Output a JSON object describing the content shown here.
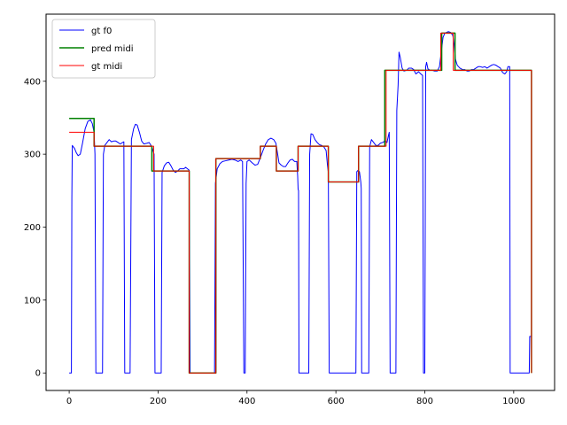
{
  "chart_data": {
    "type": "line",
    "xlim": [
      -52,
      1092
    ],
    "ylim": [
      -24,
      492
    ],
    "x_ticks": [
      0,
      200,
      400,
      600,
      800,
      1000
    ],
    "y_ticks": [
      0,
      100,
      200,
      300,
      400
    ],
    "grid": false,
    "legend_position": "top-left",
    "series": [
      {
        "name": "gt f0",
        "color": "#0000ff",
        "points": [
          [
            0,
            0
          ],
          [
            5,
            0
          ],
          [
            6,
            240
          ],
          [
            7,
            312
          ],
          [
            12,
            308
          ],
          [
            16,
            302
          ],
          [
            20,
            298
          ],
          [
            25,
            300
          ],
          [
            30,
            315
          ],
          [
            36,
            335
          ],
          [
            42,
            345
          ],
          [
            48,
            347
          ],
          [
            52,
            342
          ],
          [
            56,
            330
          ],
          [
            58,
            300
          ],
          [
            60,
            0
          ],
          [
            75,
            0
          ],
          [
            77,
            300
          ],
          [
            80,
            312
          ],
          [
            85,
            316
          ],
          [
            90,
            320
          ],
          [
            95,
            317
          ],
          [
            100,
            318
          ],
          [
            105,
            318
          ],
          [
            110,
            316
          ],
          [
            115,
            314
          ],
          [
            120,
            316
          ],
          [
            123,
            317
          ],
          [
            125,
            0
          ],
          [
            137,
            0
          ],
          [
            140,
            320
          ],
          [
            145,
            335
          ],
          [
            149,
            341
          ],
          [
            153,
            340
          ],
          [
            158,
            330
          ],
          [
            163,
            318
          ],
          [
            168,
            314
          ],
          [
            175,
            315
          ],
          [
            180,
            316
          ],
          [
            186,
            310
          ],
          [
            191,
            300
          ],
          [
            193,
            0
          ],
          [
            207,
            0
          ],
          [
            209,
            275
          ],
          [
            214,
            284
          ],
          [
            219,
            288
          ],
          [
            224,
            289
          ],
          [
            229,
            284
          ],
          [
            234,
            278
          ],
          [
            239,
            275
          ],
          [
            244,
            277
          ],
          [
            249,
            280
          ],
          [
            254,
            280
          ],
          [
            258,
            280
          ],
          [
            262,
            282
          ],
          [
            266,
            280
          ],
          [
            270,
            278
          ],
          [
            272,
            0
          ],
          [
            327,
            0
          ],
          [
            329,
            260
          ],
          [
            333,
            280
          ],
          [
            339,
            287
          ],
          [
            345,
            290
          ],
          [
            352,
            291
          ],
          [
            359,
            292
          ],
          [
            366,
            293
          ],
          [
            373,
            292
          ],
          [
            380,
            290
          ],
          [
            386,
            292
          ],
          [
            390,
            290
          ],
          [
            393,
            0
          ],
          [
            396,
            0
          ],
          [
            398,
            260
          ],
          [
            400,
            290
          ],
          [
            405,
            292
          ],
          [
            412,
            288
          ],
          [
            418,
            285
          ],
          [
            424,
            286
          ],
          [
            430,
            295
          ],
          [
            436,
            305
          ],
          [
            442,
            314
          ],
          [
            448,
            320
          ],
          [
            454,
            322
          ],
          [
            460,
            320
          ],
          [
            465,
            315
          ],
          [
            469,
            300
          ],
          [
            472,
            288
          ],
          [
            477,
            285
          ],
          [
            482,
            283
          ],
          [
            487,
            283
          ],
          [
            492,
            288
          ],
          [
            497,
            292
          ],
          [
            502,
            293
          ],
          [
            507,
            290
          ],
          [
            512,
            290
          ],
          [
            514,
            270
          ],
          [
            515,
            252
          ],
          [
            516,
            250
          ],
          [
            517,
            0
          ],
          [
            539,
            0
          ],
          [
            541,
            300
          ],
          [
            544,
            328
          ],
          [
            548,
            327
          ],
          [
            553,
            320
          ],
          [
            558,
            316
          ],
          [
            563,
            313
          ],
          [
            568,
            312
          ],
          [
            573,
            310
          ],
          [
            578,
            305
          ],
          [
            581,
            285
          ],
          [
            583,
            275
          ],
          [
            585,
            0
          ],
          [
            645,
            0
          ],
          [
            647,
            276
          ],
          [
            650,
            278
          ],
          [
            653,
            276
          ],
          [
            656,
            262
          ],
          [
            657,
            253
          ],
          [
            658,
            0
          ],
          [
            674,
            0
          ],
          [
            676,
            310
          ],
          [
            680,
            320
          ],
          [
            685,
            316
          ],
          [
            690,
            312
          ],
          [
            695,
            312
          ],
          [
            700,
            315
          ],
          [
            705,
            316
          ],
          [
            710,
            318
          ],
          [
            715,
            316
          ],
          [
            718,
            325
          ],
          [
            720,
            330
          ],
          [
            722,
            0
          ],
          [
            735,
            0
          ],
          [
            737,
            360
          ],
          [
            740,
            395
          ],
          [
            742,
            440
          ],
          [
            745,
            432
          ],
          [
            749,
            418
          ],
          [
            753,
            414
          ],
          [
            759,
            415
          ],
          [
            764,
            418
          ],
          [
            770,
            418
          ],
          [
            775,
            416
          ],
          [
            780,
            410
          ],
          [
            786,
            413
          ],
          [
            791,
            410
          ],
          [
            795,
            408
          ],
          [
            797,
            0
          ],
          [
            800,
            0
          ],
          [
            802,
            420
          ],
          [
            804,
            426
          ],
          [
            807,
            417
          ],
          [
            812,
            415
          ],
          [
            817,
            415
          ],
          [
            822,
            414
          ],
          [
            828,
            414
          ],
          [
            833,
            420
          ],
          [
            837,
            440
          ],
          [
            841,
            460
          ],
          [
            845,
            466
          ],
          [
            849,
            467
          ],
          [
            853,
            468
          ],
          [
            858,
            467
          ],
          [
            863,
            463
          ],
          [
            866,
            450
          ],
          [
            869,
            430
          ],
          [
            873,
            422
          ],
          [
            879,
            418
          ],
          [
            885,
            416
          ],
          [
            890,
            416
          ],
          [
            895,
            414
          ],
          [
            900,
            414
          ],
          [
            905,
            416
          ],
          [
            910,
            416
          ],
          [
            915,
            418
          ],
          [
            920,
            420
          ],
          [
            925,
            420
          ],
          [
            930,
            419
          ],
          [
            935,
            420
          ],
          [
            940,
            418
          ],
          [
            945,
            420
          ],
          [
            950,
            422
          ],
          [
            955,
            423
          ],
          [
            960,
            422
          ],
          [
            965,
            420
          ],
          [
            970,
            418
          ],
          [
            975,
            412
          ],
          [
            980,
            410
          ],
          [
            984,
            413
          ],
          [
            987,
            420
          ],
          [
            991,
            420
          ],
          [
            992,
            0
          ],
          [
            1035,
            0
          ],
          [
            1036,
            50
          ],
          [
            1040,
            50
          ]
        ]
      },
      {
        "name": "pred midi",
        "color": "#008000",
        "points": [
          [
            0,
            349
          ],
          [
            56,
            349
          ],
          [
            56,
            311
          ],
          [
            186,
            311
          ],
          [
            186,
            277
          ],
          [
            270,
            277
          ],
          [
            270,
            0
          ],
          [
            330,
            0
          ],
          [
            330,
            294
          ],
          [
            430,
            294
          ],
          [
            430,
            311
          ],
          [
            466,
            311
          ],
          [
            466,
            277
          ],
          [
            515,
            277
          ],
          [
            515,
            311
          ],
          [
            583,
            311
          ],
          [
            583,
            262
          ],
          [
            651,
            262
          ],
          [
            651,
            311
          ],
          [
            710,
            311
          ],
          [
            710,
            415
          ],
          [
            838,
            415
          ],
          [
            838,
            466
          ],
          [
            868,
            466
          ],
          [
            868,
            415
          ],
          [
            1040,
            415
          ],
          [
            1040,
            0
          ]
        ]
      },
      {
        "name": "gt midi",
        "color": "#ff0000",
        "points": [
          [
            0,
            330
          ],
          [
            56,
            330
          ],
          [
            56,
            311
          ],
          [
            190,
            311
          ],
          [
            190,
            277
          ],
          [
            270,
            277
          ],
          [
            270,
            0
          ],
          [
            330,
            0
          ],
          [
            330,
            294
          ],
          [
            430,
            294
          ],
          [
            430,
            311
          ],
          [
            466,
            311
          ],
          [
            466,
            277
          ],
          [
            515,
            277
          ],
          [
            515,
            311
          ],
          [
            583,
            311
          ],
          [
            583,
            262
          ],
          [
            651,
            262
          ],
          [
            651,
            311
          ],
          [
            713,
            311
          ],
          [
            713,
            415
          ],
          [
            836,
            415
          ],
          [
            836,
            466
          ],
          [
            864,
            466
          ],
          [
            864,
            415
          ],
          [
            1040,
            415
          ],
          [
            1040,
            0
          ]
        ]
      }
    ]
  }
}
